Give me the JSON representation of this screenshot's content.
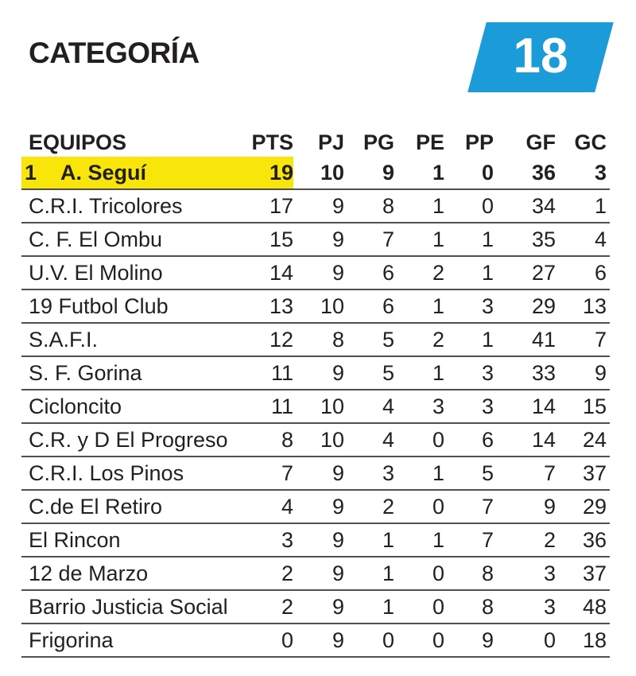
{
  "header": {
    "title": "CATEGORÍA",
    "badge_number": "18"
  },
  "colors": {
    "accent_blue": "#1b9cd8",
    "highlight_yellow": "#f8e50a",
    "text": "#231f20",
    "separator": "#4f4f4f"
  },
  "table": {
    "columns": [
      {
        "key": "team",
        "label": "EQUIPOS"
      },
      {
        "key": "pts",
        "label": "PTS"
      },
      {
        "key": "pj",
        "label": "PJ"
      },
      {
        "key": "pg",
        "label": "PG"
      },
      {
        "key": "pe",
        "label": "PE"
      },
      {
        "key": "pp",
        "label": "PP"
      },
      {
        "key": "gf",
        "label": "GF"
      },
      {
        "key": "gc",
        "label": "GC"
      }
    ],
    "rows": [
      {
        "rank": "1",
        "team": "A. Seguí",
        "pts": "19",
        "pj": "10",
        "pg": "9",
        "pe": "1",
        "pp": "0",
        "gf": "36",
        "gc": "3",
        "highlighted": true
      },
      {
        "team": "C.R.I. Tricolores",
        "pts": "17",
        "pj": "9",
        "pg": "8",
        "pe": "1",
        "pp": "0",
        "gf": "34",
        "gc": "1"
      },
      {
        "team": "C. F. El Ombu",
        "pts": "15",
        "pj": "9",
        "pg": "7",
        "pe": "1",
        "pp": "1",
        "gf": "35",
        "gc": "4"
      },
      {
        "team": "U.V. El Molino",
        "pts": "14",
        "pj": "9",
        "pg": "6",
        "pe": "2",
        "pp": "1",
        "gf": "27",
        "gc": "6"
      },
      {
        "team": "19 Futbol Club",
        "pts": "13",
        "pj": "10",
        "pg": "6",
        "pe": "1",
        "pp": "3",
        "gf": "29",
        "gc": "13"
      },
      {
        "team": "S.A.F.I.",
        "pts": "12",
        "pj": "8",
        "pg": "5",
        "pe": "2",
        "pp": "1",
        "gf": "41",
        "gc": "7"
      },
      {
        "team": "S. F. Gorina",
        "pts": "11",
        "pj": "9",
        "pg": "5",
        "pe": "1",
        "pp": "3",
        "gf": "33",
        "gc": "9"
      },
      {
        "team": "Cicloncito",
        "pts": "11",
        "pj": "10",
        "pg": "4",
        "pe": "3",
        "pp": "3",
        "gf": "14",
        "gc": "15"
      },
      {
        "team": "C.R. y D El Progreso",
        "pts": "8",
        "pj": "10",
        "pg": "4",
        "pe": "0",
        "pp": "6",
        "gf": "14",
        "gc": "24"
      },
      {
        "team": "C.R.I. Los Pinos",
        "pts": "7",
        "pj": "9",
        "pg": "3",
        "pe": "1",
        "pp": "5",
        "gf": "7",
        "gc": "37"
      },
      {
        "team": "C.de El Retiro",
        "pts": "4",
        "pj": "9",
        "pg": "2",
        "pe": "0",
        "pp": "7",
        "gf": "9",
        "gc": "29"
      },
      {
        "team": "El Rincon",
        "pts": "3",
        "pj": "9",
        "pg": "1",
        "pe": "1",
        "pp": "7",
        "gf": "2",
        "gc": "36"
      },
      {
        "team": "12 de Marzo",
        "pts": "2",
        "pj": "9",
        "pg": "1",
        "pe": "0",
        "pp": "8",
        "gf": "3",
        "gc": "37"
      },
      {
        "team": "Barrio Justicia Social",
        "pts": "2",
        "pj": "9",
        "pg": "1",
        "pe": "0",
        "pp": "8",
        "gf": "3",
        "gc": "48"
      },
      {
        "team": "Frigorina",
        "pts": "0",
        "pj": "9",
        "pg": "0",
        "pe": "0",
        "pp": "9",
        "gf": "0",
        "gc": "18"
      }
    ]
  }
}
